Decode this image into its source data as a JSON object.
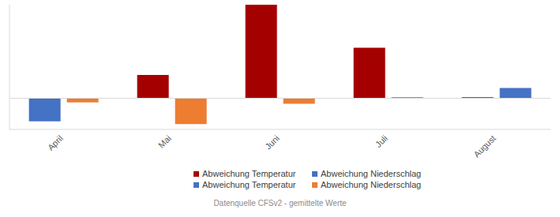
{
  "chart_data": {
    "type": "bar",
    "categories": [
      "April",
      "Mai",
      "Juni",
      "Juli",
      "August"
    ],
    "series": [
      {
        "name": "Abweichung Temperatur",
        "color": "#a50000",
        "values": [
          null,
          0.75,
          3.0,
          1.62,
          0.03
        ]
      },
      {
        "name": "Abweichung Niederschlag",
        "color": "#4472c4",
        "values": [
          null,
          null,
          null,
          0.03,
          0.33
        ]
      },
      {
        "name": "Abweichung Temperatur",
        "color": "#4472c4",
        "values": [
          -0.74,
          null,
          null,
          null,
          null
        ]
      },
      {
        "name": "Abweichung Niederschlag",
        "color": "#ed7d31",
        "values": [
          -0.13,
          -0.83,
          -0.18,
          null,
          null
        ]
      }
    ],
    "ylim": [
      -1.0,
      3.0
    ],
    "yticks": [],
    "stacked": true,
    "grid": false,
    "legend": "bottom",
    "tick_labels": "x",
    "annotations": [
      "Datenquelle CFSv2 - gemittelte Werte"
    ]
  }
}
